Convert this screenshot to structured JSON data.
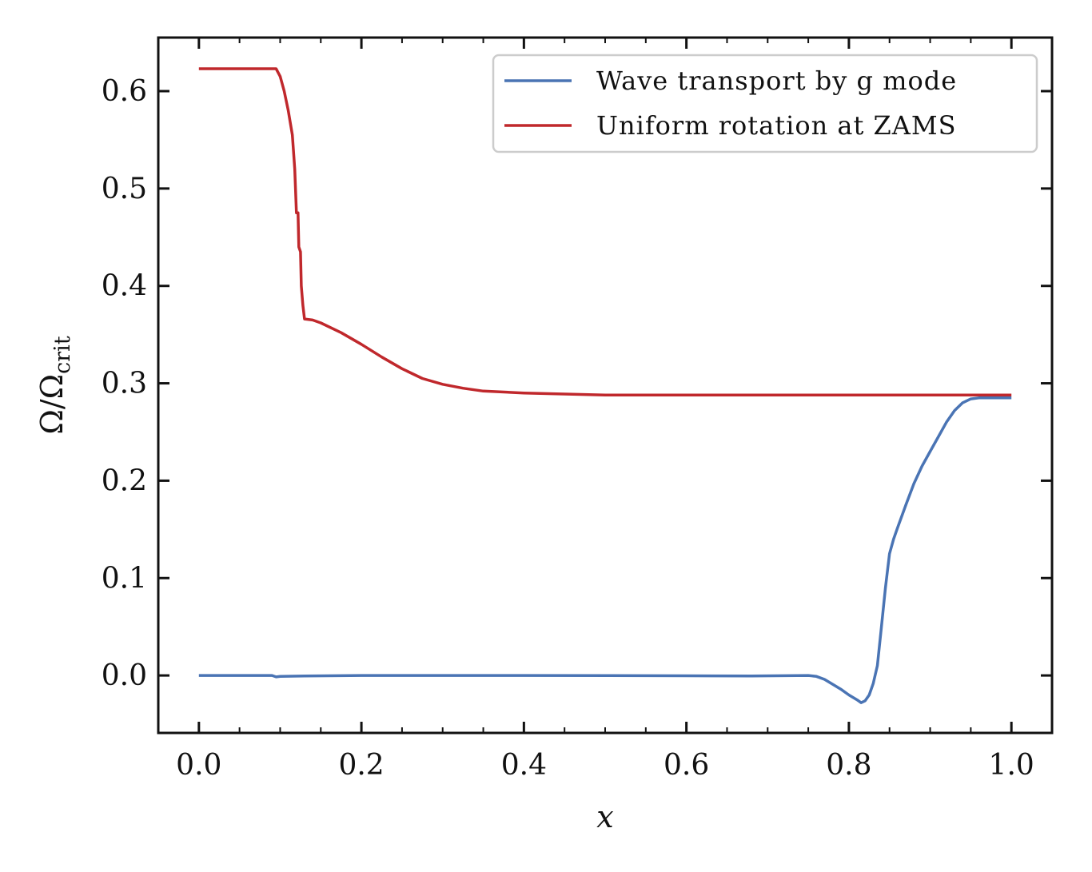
{
  "chart_data": {
    "type": "line",
    "xlabel": "x",
    "ylabel": "Ω/Ω",
    "ylabel_subscript": "crit",
    "xlim": [
      -0.05,
      1.05
    ],
    "ylim": [
      -0.059,
      0.655
    ],
    "xticks": [
      0.0,
      0.2,
      0.4,
      0.6,
      0.8,
      1.0
    ],
    "xtick_labels": [
      "0.0",
      "0.2",
      "0.4",
      "0.6",
      "0.8",
      "1.0"
    ],
    "yticks": [
      0.0,
      0.1,
      0.2,
      0.3,
      0.4,
      0.5,
      0.6
    ],
    "ytick_labels": [
      "0.0",
      "0.1",
      "0.2",
      "0.3",
      "0.4",
      "0.5",
      "0.6"
    ],
    "grid": false,
    "legend_position": "top-right",
    "series": [
      {
        "name": "Wave transport by g mode",
        "color": "#4a74b4",
        "points": [
          [
            0.0,
            0.0
          ],
          [
            0.09,
            0.0
          ],
          [
            0.095,
            -0.0015
          ],
          [
            0.1,
            -0.001
          ],
          [
            0.13,
            -0.0005
          ],
          [
            0.2,
            0.0
          ],
          [
            0.4,
            0.0
          ],
          [
            0.6,
            -0.0003
          ],
          [
            0.68,
            -0.0005
          ],
          [
            0.75,
            0.0
          ],
          [
            0.76,
            -0.001
          ],
          [
            0.77,
            -0.004
          ],
          [
            0.78,
            -0.009
          ],
          [
            0.79,
            -0.014
          ],
          [
            0.8,
            -0.02
          ],
          [
            0.81,
            -0.025
          ],
          [
            0.815,
            -0.028
          ],
          [
            0.82,
            -0.026
          ],
          [
            0.825,
            -0.02
          ],
          [
            0.83,
            -0.008
          ],
          [
            0.835,
            0.01
          ],
          [
            0.84,
            0.05
          ],
          [
            0.845,
            0.09
          ],
          [
            0.85,
            0.125
          ],
          [
            0.855,
            0.14
          ],
          [
            0.86,
            0.152
          ],
          [
            0.87,
            0.175
          ],
          [
            0.88,
            0.197
          ],
          [
            0.89,
            0.215
          ],
          [
            0.9,
            0.23
          ],
          [
            0.91,
            0.245
          ],
          [
            0.92,
            0.26
          ],
          [
            0.93,
            0.272
          ],
          [
            0.94,
            0.28
          ],
          [
            0.95,
            0.284
          ],
          [
            0.96,
            0.285
          ],
          [
            1.0,
            0.285
          ]
        ]
      },
      {
        "name": "Uniform rotation at ZAMS",
        "color": "#c0282c",
        "points": [
          [
            0.0,
            0.623
          ],
          [
            0.095,
            0.623
          ],
          [
            0.1,
            0.615
          ],
          [
            0.105,
            0.6
          ],
          [
            0.11,
            0.58
          ],
          [
            0.115,
            0.555
          ],
          [
            0.118,
            0.52
          ],
          [
            0.12,
            0.475
          ],
          [
            0.122,
            0.475
          ],
          [
            0.123,
            0.44
          ],
          [
            0.125,
            0.435
          ],
          [
            0.126,
            0.4
          ],
          [
            0.128,
            0.38
          ],
          [
            0.13,
            0.366
          ],
          [
            0.14,
            0.365
          ],
          [
            0.15,
            0.362
          ],
          [
            0.175,
            0.352
          ],
          [
            0.2,
            0.34
          ],
          [
            0.225,
            0.327
          ],
          [
            0.25,
            0.315
          ],
          [
            0.275,
            0.305
          ],
          [
            0.3,
            0.299
          ],
          [
            0.325,
            0.295
          ],
          [
            0.35,
            0.292
          ],
          [
            0.4,
            0.29
          ],
          [
            0.45,
            0.289
          ],
          [
            0.5,
            0.288
          ],
          [
            0.6,
            0.288
          ],
          [
            1.0,
            0.288
          ]
        ]
      }
    ]
  }
}
